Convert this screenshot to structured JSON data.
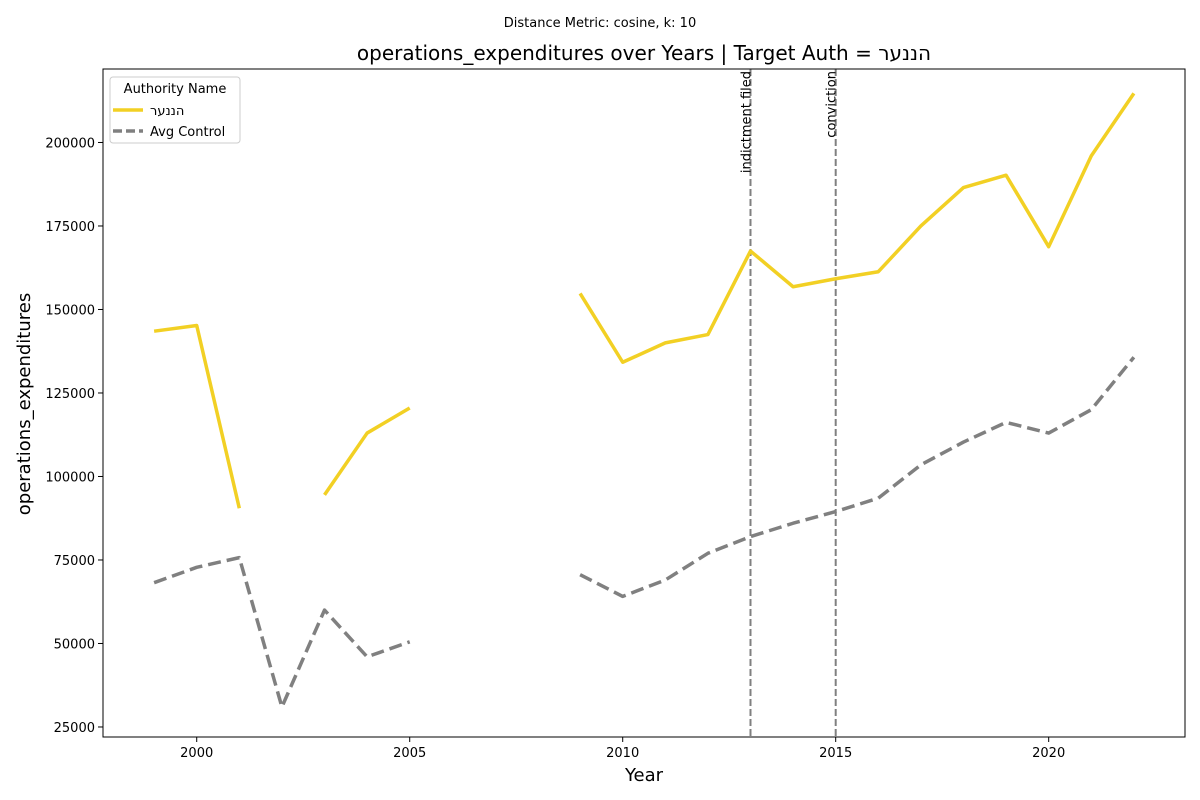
{
  "chart_data": {
    "type": "line",
    "suptitle": "Distance Metric: cosine, k: 10",
    "title": "operations_expenditures over Years | Target Auth = הננער",
    "xlabel": "Year",
    "ylabel": "operations_expenditures",
    "xlim": [
      1997.8,
      2023.2
    ],
    "ylim": [
      22000,
      222000
    ],
    "xticks": [
      2000,
      2005,
      2010,
      2015,
      2020
    ],
    "yticks": [
      25000,
      50000,
      75000,
      100000,
      125000,
      150000,
      175000,
      200000
    ],
    "grid": false,
    "legend": {
      "title": "Authority Name",
      "placement": "top-left"
    },
    "series": [
      {
        "name": "הננער",
        "color": "#f2d024",
        "style": "solid",
        "x": [
          1999,
          2000,
          2001,
          2002,
          2003,
          2004,
          2005,
          2006,
          2007,
          2008,
          2009,
          2010,
          2011,
          2012,
          2013,
          2014,
          2015,
          2016,
          2017,
          2018,
          2019,
          2020,
          2021,
          2022
        ],
        "values": [
          143500,
          145200,
          90500,
          null,
          94500,
          113000,
          120500,
          null,
          null,
          null,
          154800,
          134200,
          140000,
          142500,
          167500,
          156800,
          159200,
          161300,
          175000,
          186500,
          190200,
          168800,
          196000,
          214700
        ]
      },
      {
        "name": "Avg Control",
        "color": "#808080",
        "style": "dashed",
        "x": [
          1999,
          2000,
          2001,
          2002,
          2003,
          2004,
          2005,
          2006,
          2007,
          2008,
          2009,
          2010,
          2011,
          2012,
          2013,
          2014,
          2015,
          2016,
          2017,
          2018,
          2019,
          2020,
          2021,
          2022
        ],
        "values": [
          68200,
          72800,
          75700,
          31000,
          60000,
          46000,
          50500,
          null,
          null,
          null,
          70600,
          64100,
          69000,
          77000,
          82000,
          86000,
          89500,
          93500,
          103500,
          110300,
          116200,
          113000,
          120000,
          135700
        ]
      }
    ],
    "vlines": [
      {
        "x": 2013,
        "label": "indictment filed",
        "color": "#808080"
      },
      {
        "x": 2015,
        "label": "conviction",
        "color": "#808080"
      }
    ]
  }
}
